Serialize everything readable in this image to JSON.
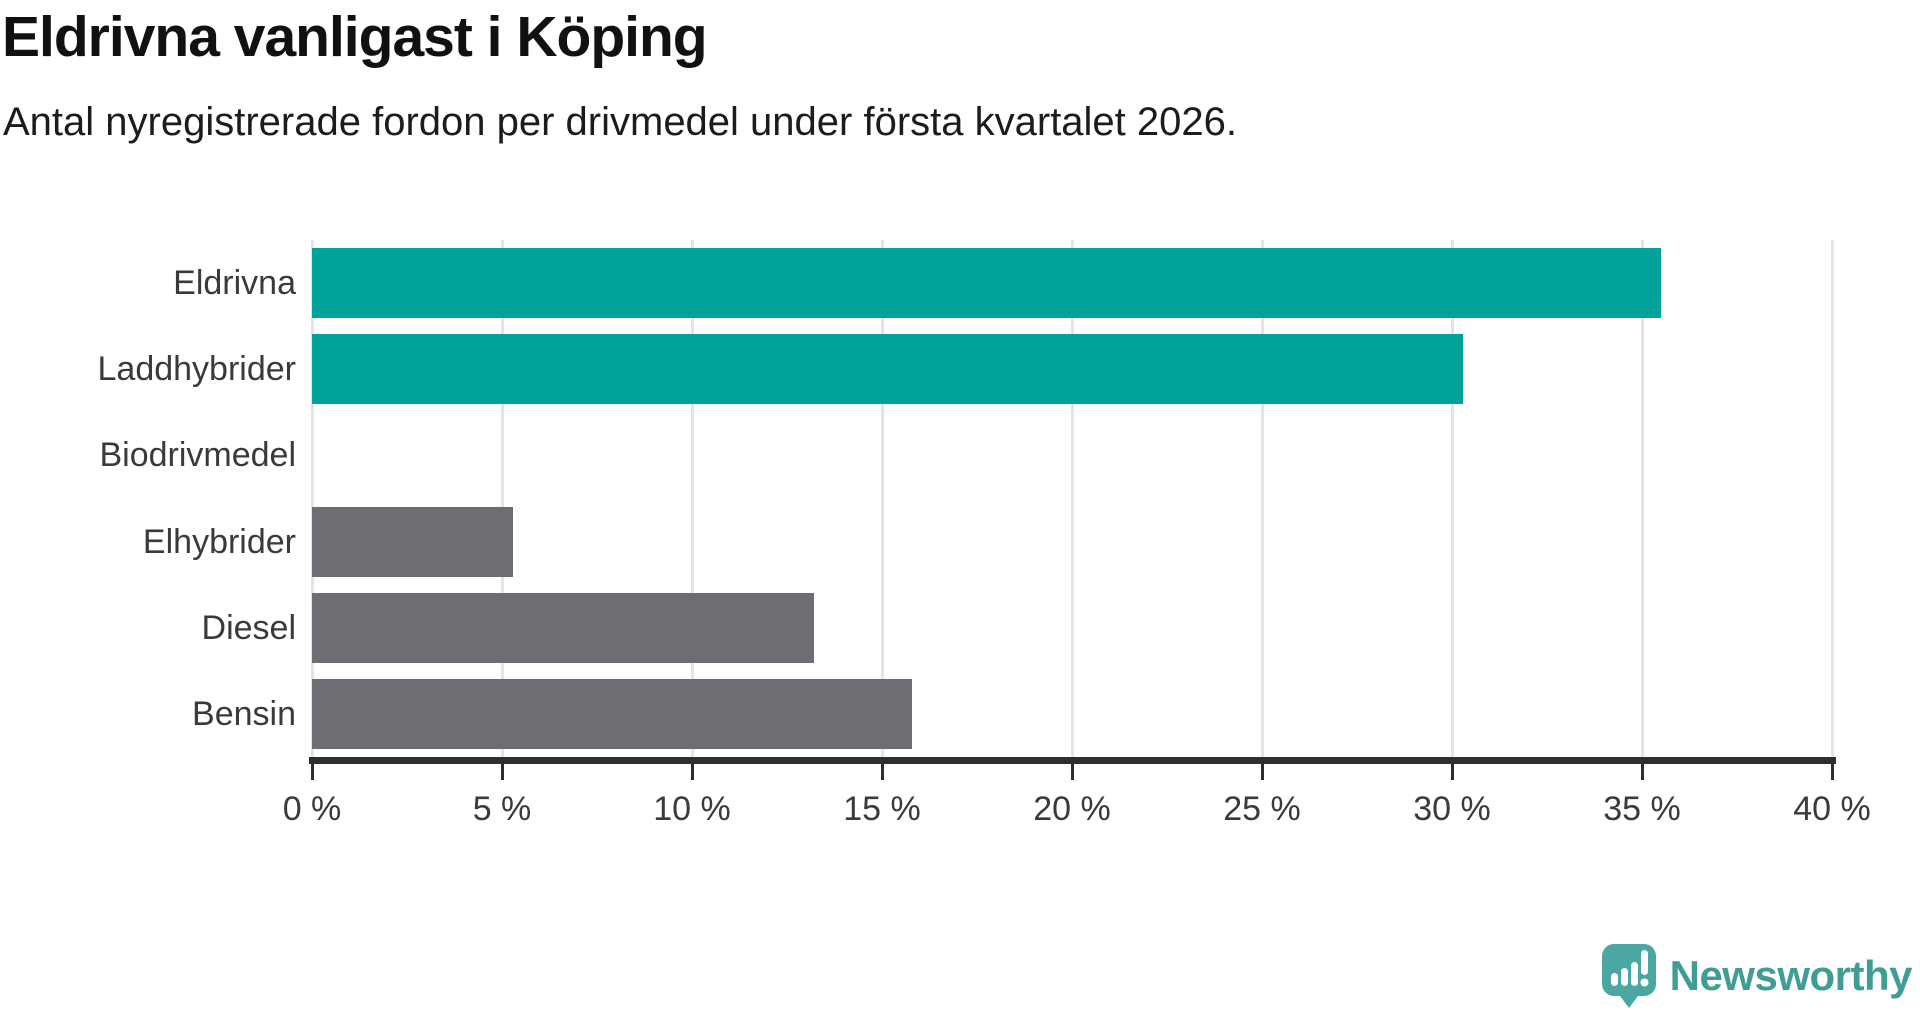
{
  "header": {
    "title": "Eldrivna vanligast i Köping",
    "subtitle": "Antal nyregistrerade fordon per drivmedel under första kvartalet 2026."
  },
  "chart_data": {
    "type": "bar",
    "orientation": "horizontal",
    "categories": [
      "Eldrivna",
      "Laddhybrider",
      "Biodrivmedel",
      "Elhybrider",
      "Diesel",
      "Bensin"
    ],
    "values": [
      35.5,
      30.3,
      0,
      5.3,
      13.2,
      15.8
    ],
    "unit": "%",
    "xlim": [
      0,
      40
    ],
    "x_ticks": [
      0,
      5,
      10,
      15,
      20,
      25,
      30,
      35,
      40
    ],
    "x_tick_labels": [
      "0 %",
      "5 %",
      "10 %",
      "15 %",
      "20 %",
      "25 %",
      "30 %",
      "35 %",
      "40 %"
    ],
    "bar_colors": [
      "#00a29a",
      "#00a29a",
      "#6e6d73",
      "#6e6d73",
      "#6e6d73",
      "#6e6d73"
    ],
    "highlight_color": "#00a29a",
    "default_color": "#6e6d73",
    "gridline_color": "#e4e4e4",
    "axis_color": "#2e2e2e",
    "label_color": "#3a3a3a",
    "grid": "vertical",
    "legend": "none",
    "title": "Eldrivna vanligast i Köping",
    "xlabel": "",
    "ylabel": ""
  },
  "footer": {
    "brand": "Newsworthy",
    "brand_color": "#3f9d96"
  }
}
